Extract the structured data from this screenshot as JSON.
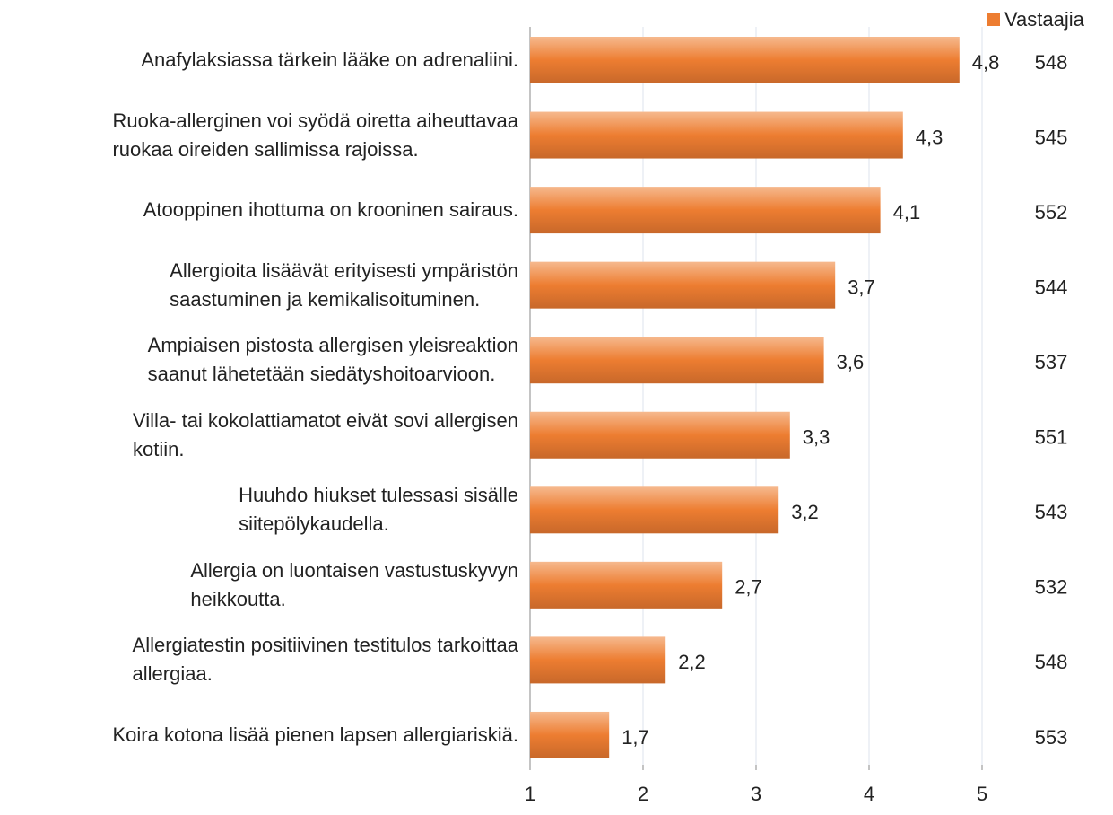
{
  "chart_data": {
    "type": "bar",
    "orientation": "horizontal",
    "categories": [
      "Anafylaksiassa tärkein lääke on adrenaliini.",
      "Ruoka-allerginen voi syödä oiretta aiheuttavaa\nruokaa oireiden sallimissa rajoissa.",
      "Atooppinen ihottuma on krooninen sairaus.",
      "Allergioita lisäävät erityisesti ympäristön\nsaastuminen ja kemikalisoituminen.",
      "Ampiaisen pistosta allergisen yleisreaktion\nsaanut lähetetään siedätyshoitoarvioon.",
      "Villa- tai kokolattiamatot eivät sovi allergisen\nkotiin.",
      "Huuhdo hiukset tulessasi sisälle\nsiitepölykaudella.",
      "Allergia on luontaisen vastustuskyvyn\nheikkoutta.",
      "Allergiatestin positiivinen testitulos tarkoittaa\nallergiaa.",
      "Koira kotona lisää pienen lapsen allergiariskiä."
    ],
    "series": [
      {
        "name": "Vastaajia",
        "color": "#ed7d31",
        "values": [
          4.8,
          4.3,
          4.1,
          3.7,
          3.6,
          3.3,
          3.2,
          2.7,
          2.2,
          1.7
        ],
        "value_labels": [
          "4,8",
          "4,3",
          "4,1",
          "3,7",
          "3,6",
          "3,3",
          "3,2",
          "2,7",
          "2,2",
          "1,7"
        ]
      }
    ],
    "counts": [
      548,
      545,
      552,
      544,
      537,
      551,
      543,
      532,
      548,
      553
    ],
    "xlim": [
      1,
      5
    ],
    "xticks": [
      1,
      2,
      3,
      4,
      5
    ],
    "grid": true,
    "legend": "top-right"
  }
}
